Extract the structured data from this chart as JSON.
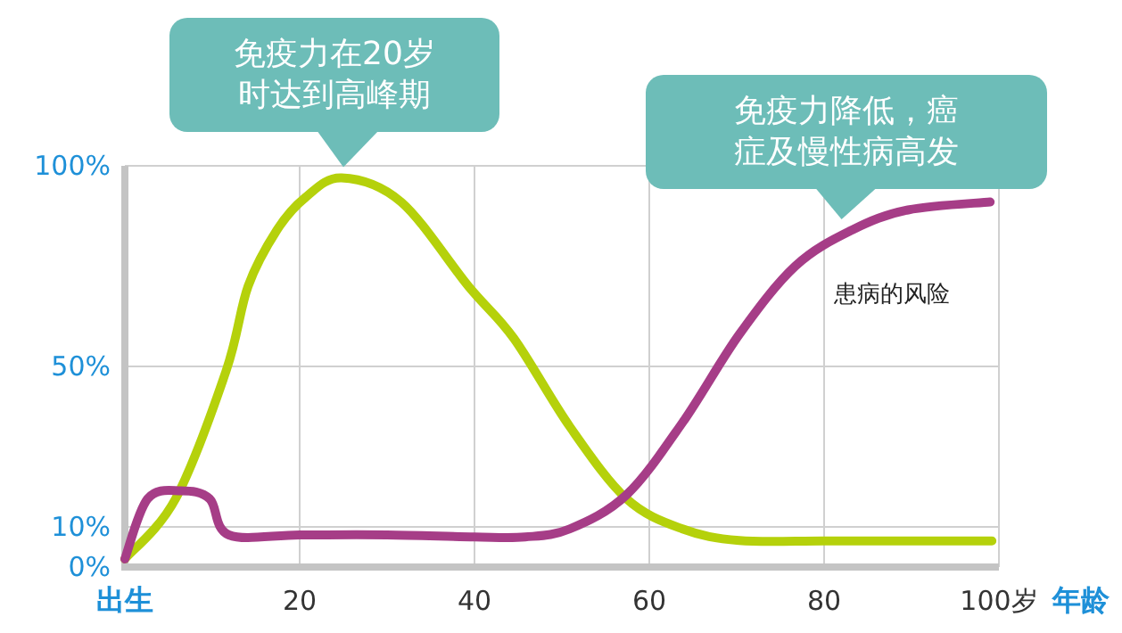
{
  "chart_data": {
    "type": "line",
    "xlim": [
      0,
      100
    ],
    "ylim": [
      0,
      100
    ],
    "xticks": [
      {
        "value": 0,
        "label": "出生"
      },
      20,
      40,
      60,
      80,
      {
        "value": 100,
        "label": "100岁"
      }
    ],
    "yticks": [
      {
        "value": 0,
        "label": "0%"
      },
      {
        "value": 10,
        "label": "10%"
      },
      {
        "value": 50,
        "label": "50%"
      },
      {
        "value": 100,
        "label": "100%"
      }
    ],
    "xlabel": "年龄",
    "grid": true,
    "marker": "none",
    "line_style": "solid",
    "series": [
      {
        "color": "#b5d10b",
        "x": [
          0,
          5.8,
          11.6,
          14.1,
          17.4,
          20.6,
          24.8,
          31.6,
          39.3,
          44.5,
          50.9,
          57.4,
          63.8,
          70.3,
          80,
          90,
          99.2
        ],
        "values": [
          2,
          17,
          49,
          70,
          84,
          92,
          97,
          91,
          70,
          57,
          35,
          17,
          9.5,
          6.6,
          6.5,
          6.5,
          6.5
        ]
      },
      {
        "name": "患病的风险",
        "color": "#a63d87",
        "x": [
          0,
          2.6,
          6.4,
          9.7,
          11.9,
          20,
          30,
          40,
          45.8,
          50.9,
          57.4,
          63.8,
          70.3,
          76.7,
          83.2,
          89.6,
          99
        ],
        "values": [
          2,
          17,
          19,
          17,
          8,
          8,
          8,
          7.5,
          7.5,
          9.5,
          18,
          36,
          58,
          75,
          84,
          89,
          91
        ]
      }
    ],
    "annotations": [
      {
        "text": "免疫力在20岁时达到高峰期",
        "x": 25,
        "y": 97
      },
      {
        "text": "免疫力降低，癌症及慢性病高发",
        "x": 82,
        "y": 84
      }
    ]
  }
}
